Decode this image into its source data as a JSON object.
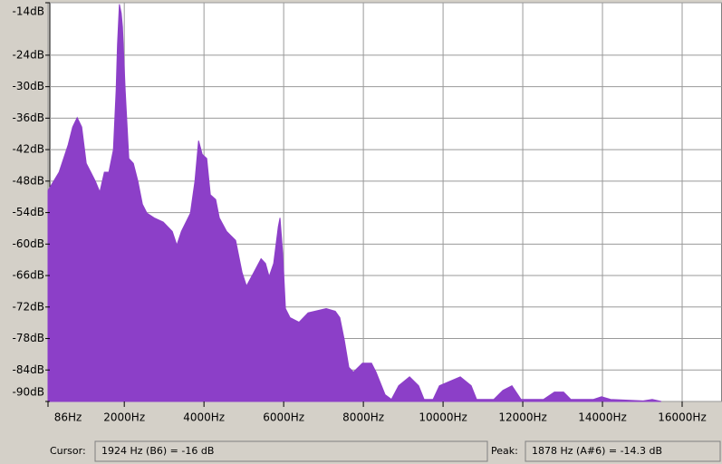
{
  "chart_data": {
    "type": "area",
    "x": [
      86,
      364,
      591,
      705,
      818,
      932,
      1045,
      1159,
      1273,
      1386,
      1500,
      1614,
      1727,
      1795,
      1830,
      1878,
      1924,
      1955,
      2023,
      2114,
      2227,
      2341,
      2455,
      2568,
      2750,
      2977,
      3205,
      3318,
      3432,
      3659,
      3773,
      3864,
      3955,
      4068,
      4159,
      4295,
      4386,
      4568,
      4795,
      4955,
      5068,
      5250,
      5432,
      5545,
      5636,
      5750,
      5864,
      5909,
      5977,
      6045,
      6159,
      6386,
      6614,
      7068,
      7295,
      7409,
      7523,
      7636,
      7750,
      7977,
      8205,
      8318,
      8545,
      8705,
      8886,
      9159,
      9386,
      9523,
      9750,
      9909,
      10432,
      10705,
      10841,
      11273,
      11500,
      11727,
      11955,
      12523,
      12795,
      13023,
      13205,
      13773,
      13977,
      14205,
      15023,
      15250,
      15477
    ],
    "values": [
      -49.8,
      -46.3,
      -41.1,
      -37.7,
      -35.9,
      -37.7,
      -44.6,
      -46.3,
      -48.0,
      -50.1,
      -46.3,
      -46.3,
      -42.0,
      -30.7,
      -22,
      -14.3,
      -16,
      -18.6,
      -30.7,
      -43.7,
      -44.6,
      -48.0,
      -52.4,
      -54.1,
      -55.0,
      -55.8,
      -57.6,
      -60.2,
      -57.6,
      -54.1,
      -48.0,
      -40.3,
      -42.9,
      -43.7,
      -50.6,
      -51.5,
      -55.0,
      -57.6,
      -59.3,
      -65.4,
      -68.0,
      -65.4,
      -62.8,
      -63.7,
      -66.2,
      -63.7,
      -56.7,
      -55.0,
      -61.9,
      -72.3,
      -74.0,
      -74.9,
      -73.1,
      -72.3,
      -72.8,
      -74.0,
      -78.3,
      -83.5,
      -84.4,
      -82.7,
      -82.7,
      -84.4,
      -88.7,
      -89.6,
      -87.0,
      -85.3,
      -87.0,
      -89.6,
      -89.6,
      -87.0,
      -85.3,
      -87.0,
      -89.6,
      -89.6,
      -87.9,
      -87.0,
      -89.6,
      -89.6,
      -88.2,
      -88.2,
      -89.6,
      -89.6,
      -89.1,
      -89.6,
      -89.9,
      -89.6,
      -90
    ],
    "color": "#8c3fc8",
    "xlim": [
      86,
      17000
    ],
    "ylim": [
      -90,
      -14
    ],
    "xticks": [
      {
        "value": 86,
        "label": "86Hz"
      },
      {
        "value": 2000,
        "label": "2000Hz"
      },
      {
        "value": 4000,
        "label": "4000Hz"
      },
      {
        "value": 6000,
        "label": "6000Hz"
      },
      {
        "value": 8000,
        "label": "8000Hz"
      },
      {
        "value": 10000,
        "label": "10000Hz"
      },
      {
        "value": 12000,
        "label": "12000Hz"
      },
      {
        "value": 14000,
        "label": "14000Hz"
      },
      {
        "value": 16000,
        "label": "16000Hz"
      }
    ],
    "yticks": [
      {
        "value": -14,
        "label": "-14dB"
      },
      {
        "value": -24,
        "label": "-24dB"
      },
      {
        "value": -30,
        "label": "-30dB"
      },
      {
        "value": -36,
        "label": "-36dB"
      },
      {
        "value": -42,
        "label": "-42dB"
      },
      {
        "value": -48,
        "label": "-48dB"
      },
      {
        "value": -54,
        "label": "-54dB"
      },
      {
        "value": -60,
        "label": "-60dB"
      },
      {
        "value": -66,
        "label": "-66dB"
      },
      {
        "value": -72,
        "label": "-72dB"
      },
      {
        "value": -78,
        "label": "-78dB"
      },
      {
        "value": -84,
        "label": "-84dB"
      },
      {
        "value": -90,
        "label": "-90dB"
      }
    ],
    "grid": true
  },
  "status": {
    "cursor_label": "Cursor:",
    "cursor_value": "1924 Hz (B6) = -16 dB",
    "peak_label": "Peak:",
    "peak_value": "1878 Hz (A#6) = -14.3 dB"
  }
}
